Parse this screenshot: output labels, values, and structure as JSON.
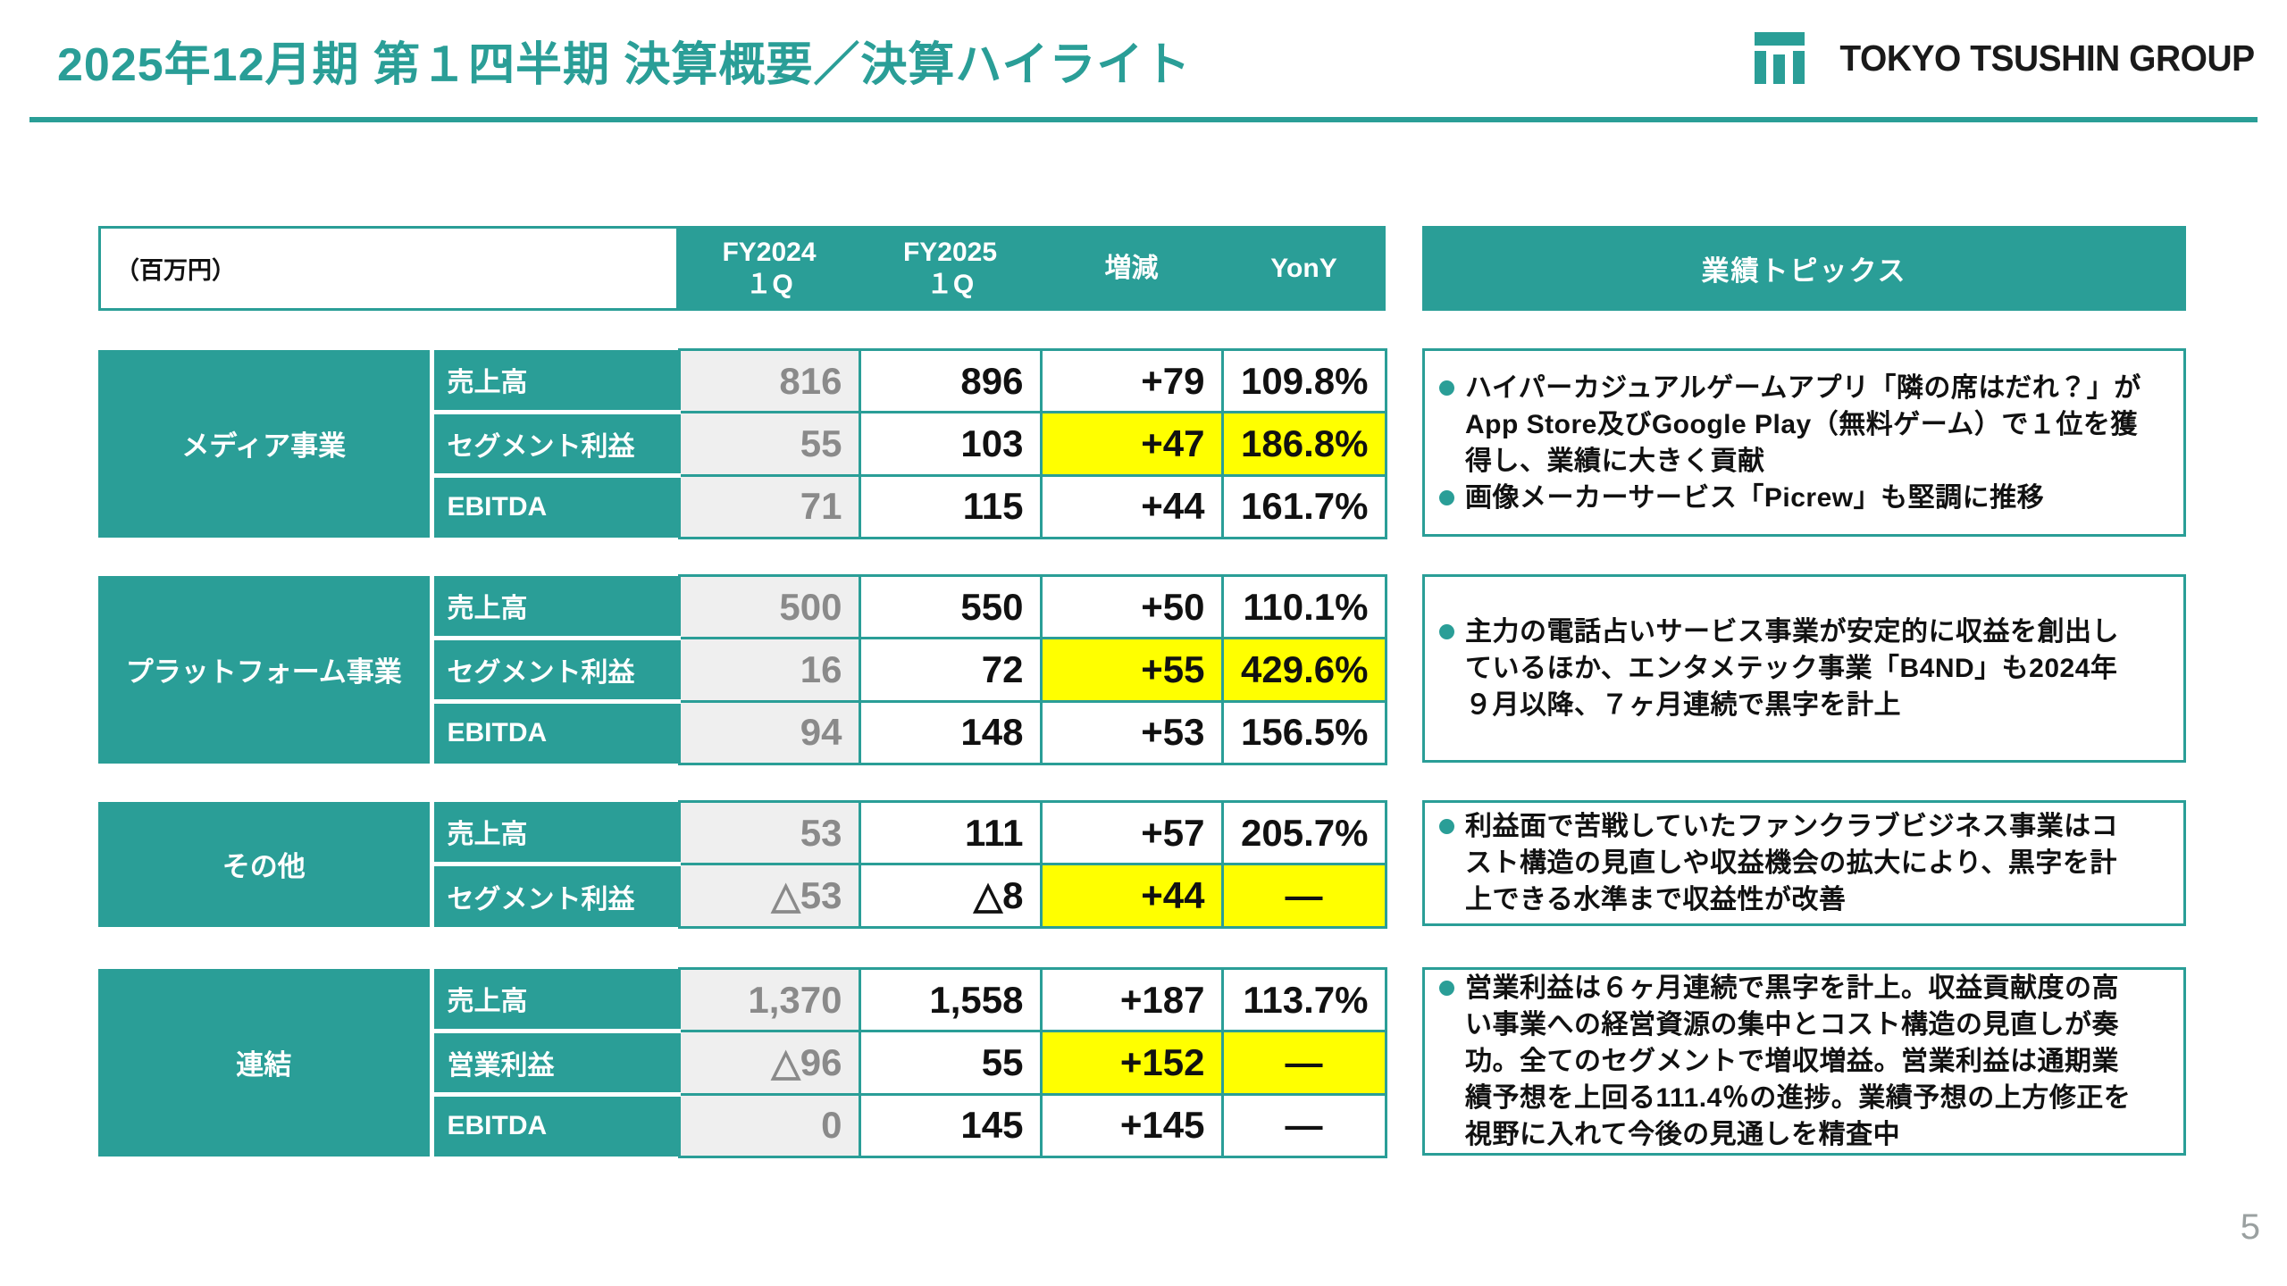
{
  "page": {
    "title": "2025年12月期 第１四半期 決算概要／決算ハイライト",
    "logo_text": "TOKYO TSUSHIN GROUP",
    "page_number": "5"
  },
  "colors": {
    "teal": "#2A9E97",
    "yellow": "#FFFF00",
    "gray_bg": "#EFEFEF",
    "gray_text": "#8A8A8A"
  },
  "table": {
    "unit_label": "（百万円）",
    "columns": [
      {
        "key": "fy2024",
        "lines": [
          "FY2024",
          "１Q"
        ]
      },
      {
        "key": "fy2025",
        "lines": [
          "FY2025",
          "１Q"
        ]
      },
      {
        "key": "diff",
        "lines": [
          "増減"
        ]
      },
      {
        "key": "yony",
        "lines": [
          "YonY"
        ]
      }
    ],
    "groups": [
      {
        "key": "media",
        "name": "メディア事業",
        "rows": [
          {
            "label": "売上高",
            "fy2024": "816",
            "fy2025": "896",
            "diff": "+79",
            "yony": "109.8%",
            "highlight": false
          },
          {
            "label": "セグメント利益",
            "fy2024": "55",
            "fy2025": "103",
            "diff": "+47",
            "yony": "186.8%",
            "highlight": true
          },
          {
            "label": "EBITDA",
            "fy2024": "71",
            "fy2025": "115",
            "diff": "+44",
            "yony": "161.7%",
            "highlight": false
          }
        ]
      },
      {
        "key": "platform",
        "name": "プラットフォーム事業",
        "rows": [
          {
            "label": "売上高",
            "fy2024": "500",
            "fy2025": "550",
            "diff": "+50",
            "yony": "110.1%",
            "highlight": false
          },
          {
            "label": "セグメント利益",
            "fy2024": "16",
            "fy2025": "72",
            "diff": "+55",
            "yony": "429.6%",
            "highlight": true
          },
          {
            "label": "EBITDA",
            "fy2024": "94",
            "fy2025": "148",
            "diff": "+53",
            "yony": "156.5%",
            "highlight": false
          }
        ]
      },
      {
        "key": "others",
        "name": "その他",
        "rows": [
          {
            "label": "売上高",
            "fy2024": "53",
            "fy2025": "111",
            "diff": "+57",
            "yony": "205.7%",
            "highlight": false
          },
          {
            "label": "セグメント利益",
            "fy2024": "△53",
            "fy2025": "△8",
            "diff": "+44",
            "yony": "―",
            "highlight": true
          }
        ]
      },
      {
        "key": "consolidated",
        "name": "連結",
        "rows": [
          {
            "label": "売上高",
            "fy2024": "1,370",
            "fy2025": "1,558",
            "diff": "+187",
            "yony": "113.7%",
            "highlight": false
          },
          {
            "label": "営業利益",
            "fy2024": "△96",
            "fy2025": "55",
            "diff": "+152",
            "yony": "―",
            "highlight": true
          },
          {
            "label": "EBITDA",
            "fy2024": "0",
            "fy2025": "145",
            "diff": "+145",
            "yony": "―",
            "highlight": false
          }
        ]
      }
    ]
  },
  "topics": {
    "header": "業績トピックス",
    "boxes": [
      {
        "bullets": [
          "ハイパーカジュアルゲームアプリ「隣の席はだれ？」がApp Store及びGoogle Play（無料ゲーム）で１位を獲得し、業績に大きく貢献",
          "画像メーカーサービス「Picrew」も堅調に推移"
        ]
      },
      {
        "bullets": [
          "主力の電話占いサービス事業が安定的に収益を創出しているほか、エンタメテック事業「B4ND」も2024年９月以降、７ヶ月連続で黒字を計上"
        ]
      },
      {
        "bullets": [
          "利益面で苦戦していたファンクラブビジネス事業はコスト構造の見直しや収益機会の拡大により、黒字を計上できる水準まで収益性が改善"
        ]
      },
      {
        "bullets": [
          "営業利益は６ヶ月連続で黒字を計上。収益貢献度の高い事業への経営資源の集中とコスト構造の見直しが奏功。全てのセグメントで増収増益。営業利益は通期業績予想を上回る111.4％の進捗。業績予想の上方修正を視野に入れて今後の見通しを精査中"
        ]
      }
    ]
  }
}
